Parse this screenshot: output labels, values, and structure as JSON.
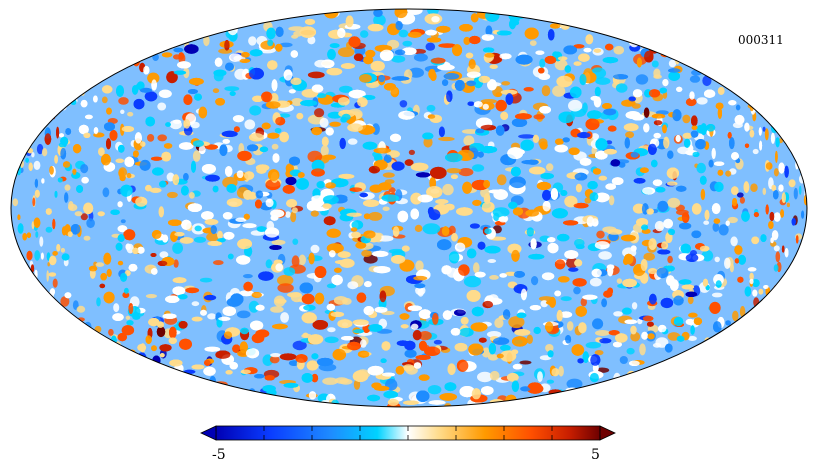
{
  "map": {
    "id_label": "000311",
    "projection": "mollweide",
    "description_colormap": [
      "#0000b4",
      "#0a3cff",
      "#1e8cff",
      "#00d2ff",
      "#ffffff",
      "#ffdc8c",
      "#ff9a00",
      "#ff5000",
      "#c81e00",
      "#6e0000"
    ]
  },
  "colorbar": {
    "min_label": "-5",
    "max_label": "5",
    "min_value": -5,
    "max_value": 5,
    "tick_values": [
      -5,
      -3.75,
      -2.5,
      -1.25,
      0,
      1.25,
      2.5,
      3.75,
      5
    ]
  }
}
